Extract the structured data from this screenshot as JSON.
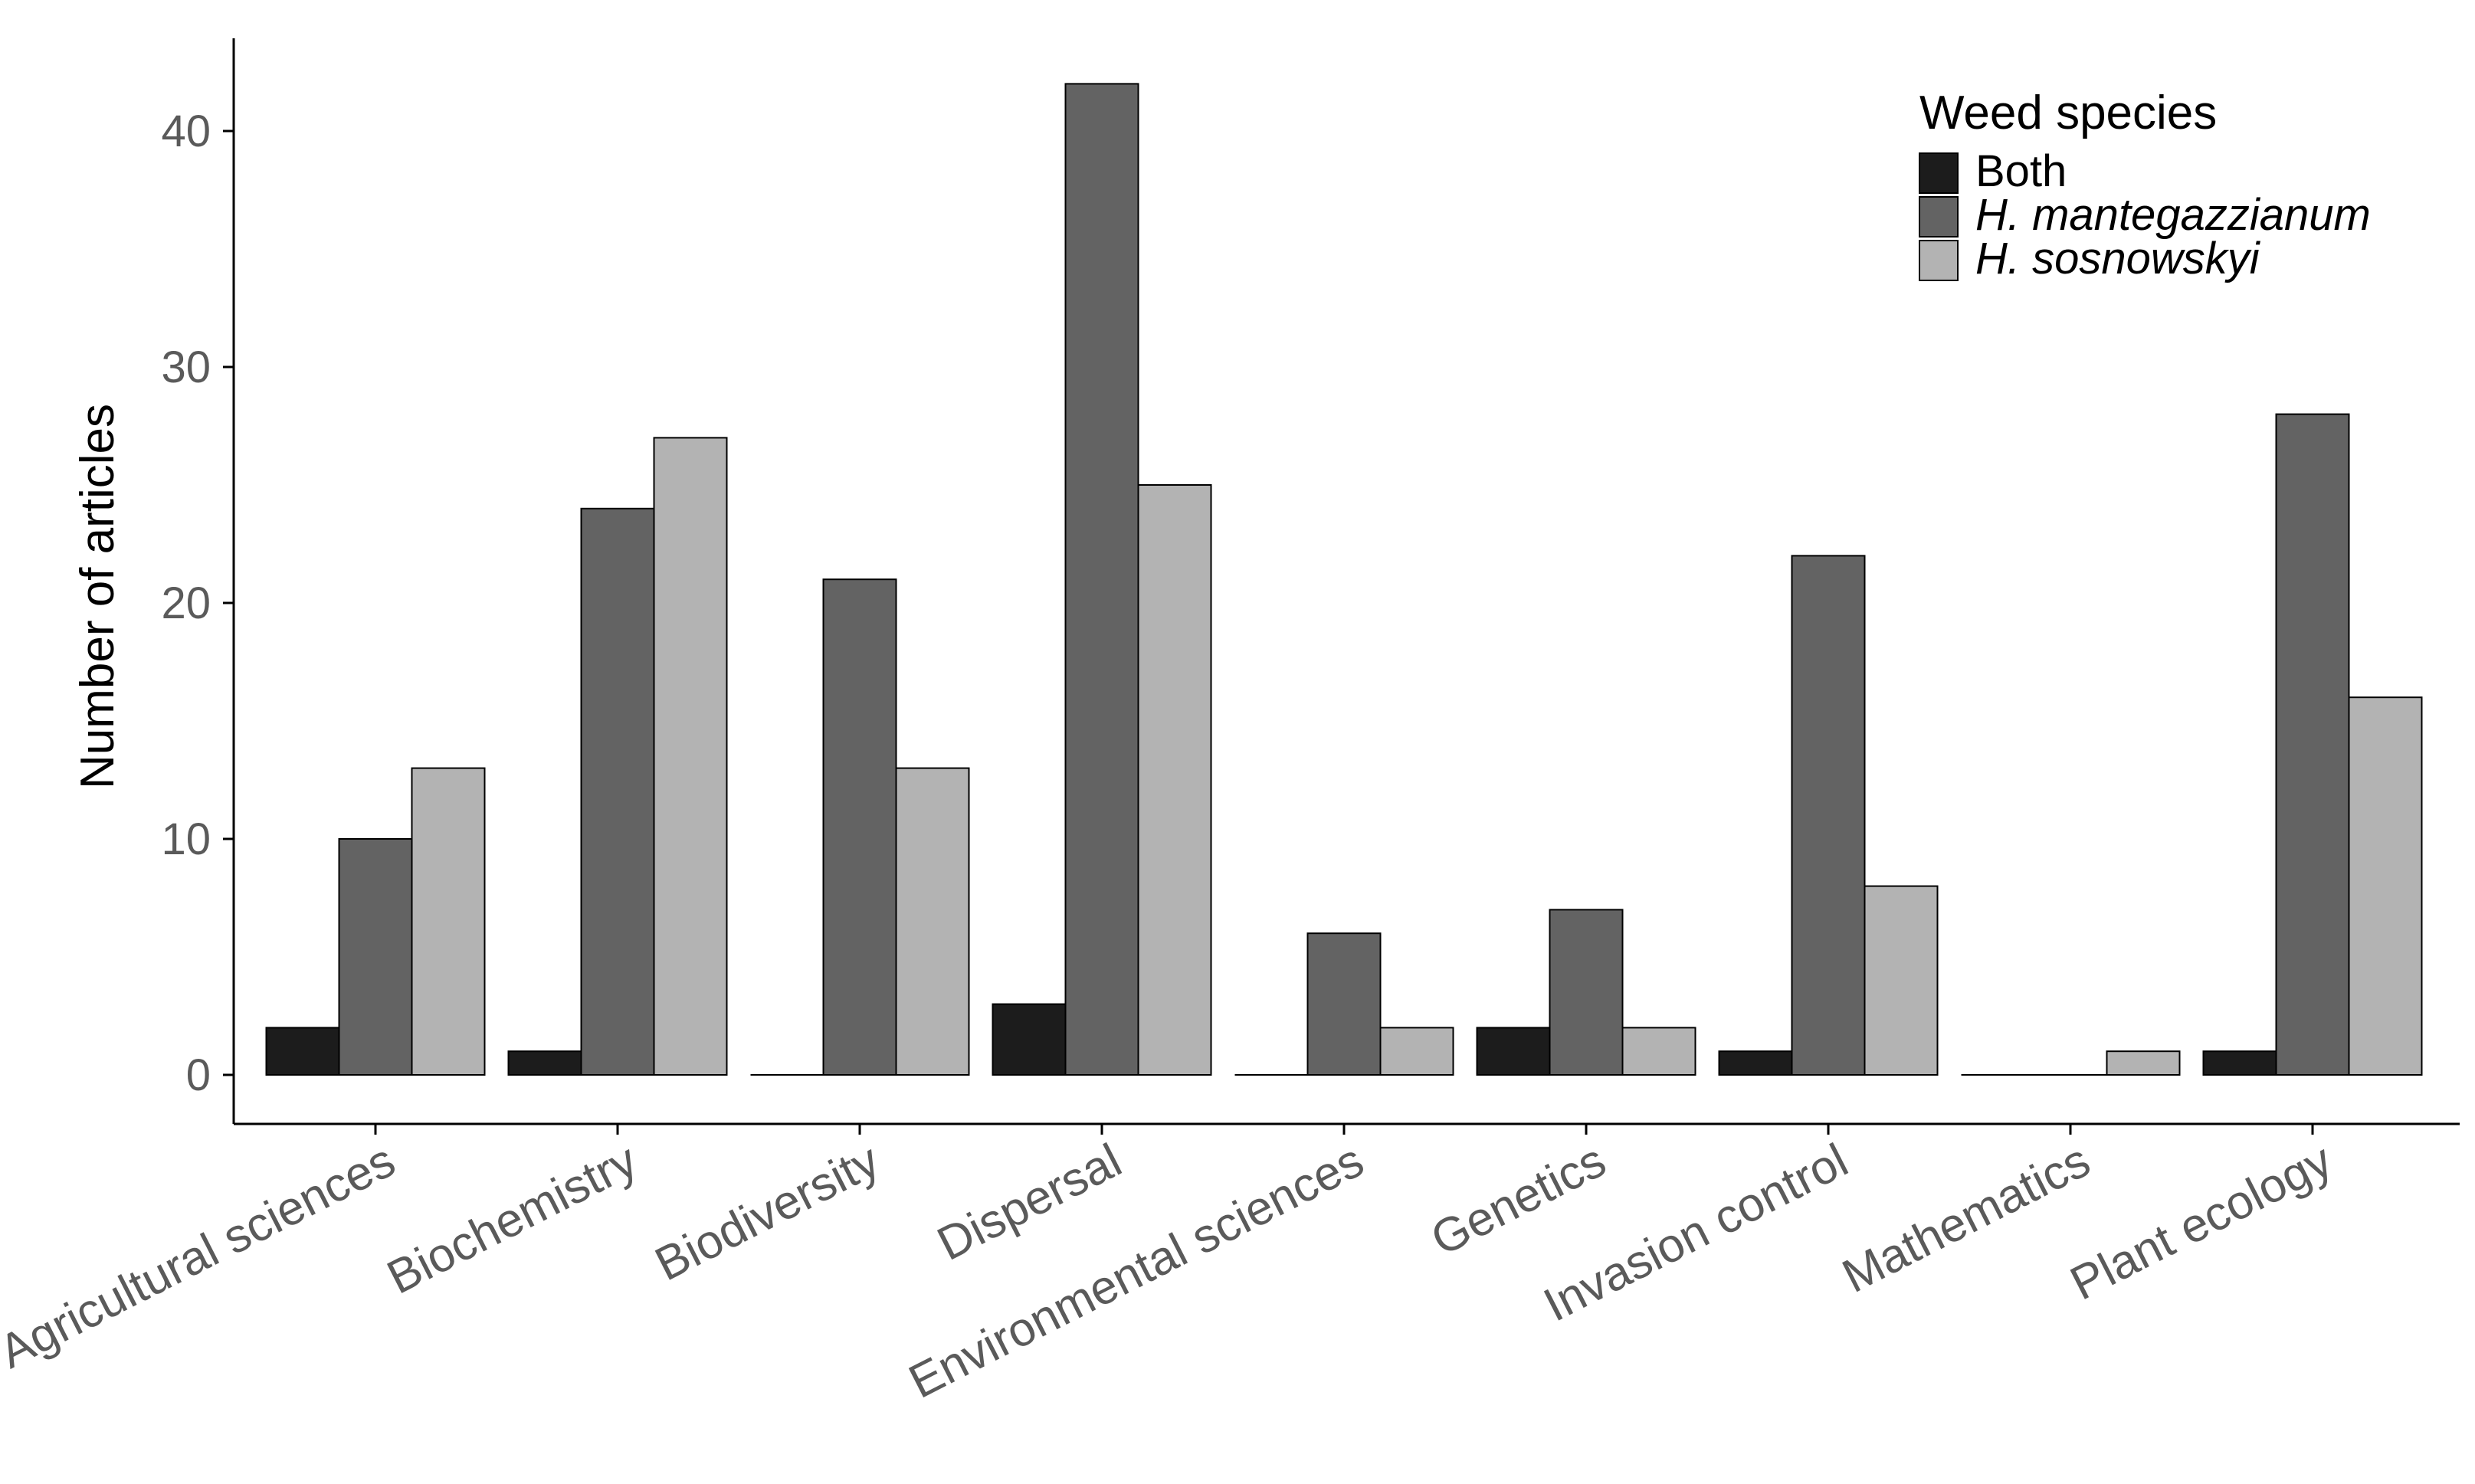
{
  "chart_data": {
    "type": "bar",
    "title": "",
    "xlabel": "",
    "ylabel": "Number of articles",
    "ylim": [
      0,
      44
    ],
    "yticks": [
      0,
      10,
      20,
      30,
      40
    ],
    "grid": false,
    "legend": {
      "title": "Weed species",
      "position": "top-right",
      "items": [
        {
          "label": "Both",
          "italic": false
        },
        {
          "label": "H. mantegazzianum",
          "italic": true
        },
        {
          "label": "H. sosnowskyi",
          "italic": true
        }
      ]
    },
    "categories": [
      "Agricultural sciences",
      "Biochemistry",
      "Biodiversity",
      "Dispersal",
      "Environmental sciences",
      "Genetics",
      "Invasion control",
      "Mathematics",
      "Plant ecology"
    ],
    "series": [
      {
        "name": "Both",
        "color": "#1c1c1c",
        "values": [
          2,
          1,
          0,
          3,
          0,
          2,
          1,
          0,
          1
        ]
      },
      {
        "name": "H. mantegazzianum",
        "color": "#636363",
        "values": [
          10,
          24,
          21,
          42,
          6,
          7,
          22,
          0,
          28
        ]
      },
      {
        "name": "H. sosnowskyi",
        "color": "#b3b3b3",
        "values": [
          13,
          27,
          13,
          25,
          2,
          2,
          8,
          1,
          16
        ]
      }
    ]
  }
}
